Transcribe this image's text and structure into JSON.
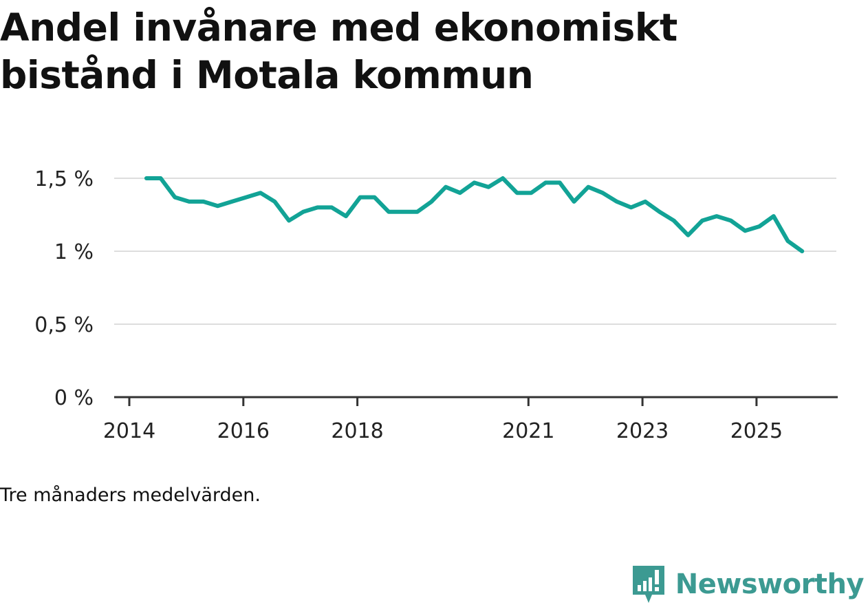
{
  "title": "Andel invånare med ekonomiskt bistånd i Motala kommun",
  "note": "Tre månaders medelvärden.",
  "brand": "Newsworthy",
  "colors": {
    "line": "#12a396",
    "grid": "#dddddd",
    "axis": "#333333",
    "text": "#111111",
    "brand": "#3c9a92"
  },
  "chart_data": {
    "type": "line",
    "title": "Andel invånare med ekonomiskt bistånd i Motala kommun",
    "xlabel": "",
    "ylabel": "",
    "ylim": [
      0,
      1.5
    ],
    "xlim": [
      2014.0,
      2026.5
    ],
    "y_ticks": [
      {
        "value": 0,
        "label": "0 %"
      },
      {
        "value": 0.5,
        "label": "0,5 %"
      },
      {
        "value": 1.0,
        "label": "1 %"
      },
      {
        "value": 1.5,
        "label": "1,5 %"
      }
    ],
    "x_ticks": [
      {
        "value": 2014.0,
        "label": "2014"
      },
      {
        "value": 2016.0,
        "label": "2016"
      },
      {
        "value": 2018.0,
        "label": "2018"
      },
      {
        "value": 2021.0,
        "label": "2021"
      },
      {
        "value": 2023.0,
        "label": "2023"
      },
      {
        "value": 2025.0,
        "label": "2025"
      }
    ],
    "grid": true,
    "series": [
      {
        "name": "Andel invånare med ekonomiskt bistånd",
        "x": [
          2014.3,
          2014.55,
          2014.8,
          2015.05,
          2015.3,
          2015.55,
          2015.8,
          2016.05,
          2016.3,
          2016.55,
          2016.8,
          2017.05,
          2017.3,
          2017.55,
          2017.8,
          2018.05,
          2018.3,
          2018.55,
          2018.8,
          2019.05,
          2019.3,
          2019.55,
          2019.8,
          2020.05,
          2020.3,
          2020.55,
          2020.8,
          2021.05,
          2021.3,
          2021.55,
          2021.8,
          2022.05,
          2022.3,
          2022.55,
          2022.8,
          2023.05,
          2023.3,
          2023.55,
          2023.8,
          2024.05,
          2024.3,
          2024.55,
          2024.8,
          2025.05,
          2025.3,
          2025.55,
          2025.8
        ],
        "values": [
          1.5,
          1.5,
          1.37,
          1.34,
          1.34,
          1.31,
          1.34,
          1.37,
          1.4,
          1.34,
          1.21,
          1.27,
          1.3,
          1.3,
          1.24,
          1.37,
          1.37,
          1.27,
          1.27,
          1.27,
          1.34,
          1.44,
          1.4,
          1.47,
          1.44,
          1.5,
          1.4,
          1.4,
          1.47,
          1.47,
          1.34,
          1.44,
          1.4,
          1.34,
          1.3,
          1.34,
          1.27,
          1.21,
          1.11,
          1.21,
          1.24,
          1.21,
          1.14,
          1.17,
          1.24,
          1.07,
          1.0
        ]
      }
    ]
  }
}
